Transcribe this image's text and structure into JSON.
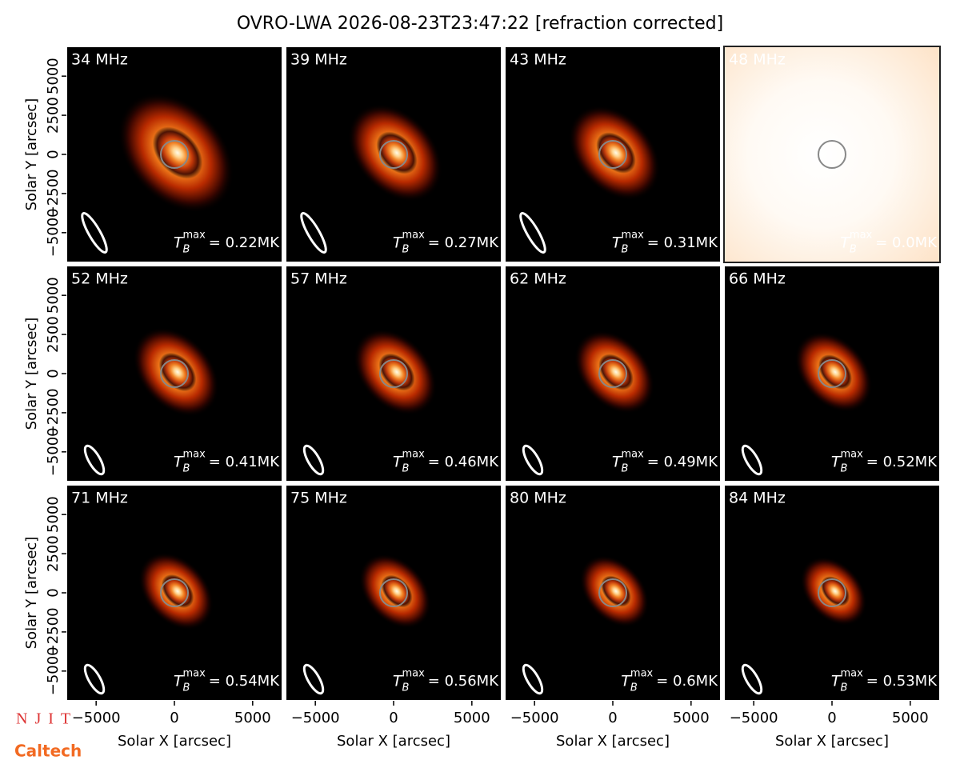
{
  "chart_data": {
    "type": "image",
    "title": "OVRO-LWA 2026-08-23T23:47:22 [refraction corrected]",
    "xlabel": "Solar X [arcsec]",
    "ylabel": "Solar Y [arcsec]",
    "xlim": [
      -6900,
      6900
    ],
    "ylim": [
      -6900,
      6900
    ],
    "xticks": [
      {
        "value": -5000,
        "label": "−5000"
      },
      0,
      5000
    ],
    "yticks": [
      {
        "value": -5000,
        "label": "−5000"
      },
      {
        "value": -2500,
        "label": "−2500"
      },
      0,
      2500,
      5000
    ],
    "panels": [
      {
        "title": "34 MHz",
        "annotation": {
          "symbol": "T",
          "subscript": "B",
          "superscript": "max",
          "text": "= 0.22MK"
        }
      },
      {
        "title": "39 MHz",
        "annotation": {
          "symbol": "T",
          "subscript": "B",
          "superscript": "max",
          "text": "= 0.27MK"
        }
      },
      {
        "title": "43 MHz",
        "annotation": {
          "symbol": "T",
          "subscript": "B",
          "superscript": "max",
          "text": "= 0.31MK"
        }
      },
      {
        "title": "48 MHz",
        "annotation": {
          "symbol": "T",
          "subscript": "B",
          "superscript": "max",
          "text": "= 0.0MK"
        }
      },
      {
        "title": "52 MHz",
        "annotation": {
          "symbol": "T",
          "subscript": "B",
          "superscript": "max",
          "text": "= 0.41MK"
        }
      },
      {
        "title": "57 MHz",
        "annotation": {
          "symbol": "T",
          "subscript": "B",
          "superscript": "max",
          "text": "= 0.46MK"
        }
      },
      {
        "title": "62 MHz",
        "annotation": {
          "symbol": "T",
          "subscript": "B",
          "superscript": "max",
          "text": "= 0.49MK"
        }
      },
      {
        "title": "66 MHz",
        "annotation": {
          "symbol": "T",
          "subscript": "B",
          "superscript": "max",
          "text": "= 0.52MK"
        }
      },
      {
        "title": "71 MHz",
        "annotation": {
          "symbol": "T",
          "subscript": "B",
          "superscript": "max",
          "text": "= 0.54MK"
        }
      },
      {
        "title": "75 MHz",
        "annotation": {
          "symbol": "T",
          "subscript": "B",
          "superscript": "max",
          "text": "= 0.56MK"
        }
      },
      {
        "title": "80 MHz",
        "annotation": {
          "symbol": "T",
          "subscript": "B",
          "superscript": "max",
          "text": "= 0.6MK"
        }
      },
      {
        "title": "84 MHz",
        "annotation": {
          "symbol": "T",
          "subscript": "B",
          "superscript": "max",
          "text": "= 0.53MK"
        }
      }
    ]
  },
  "logos": [
    "NJIT",
    "Caltech"
  ]
}
